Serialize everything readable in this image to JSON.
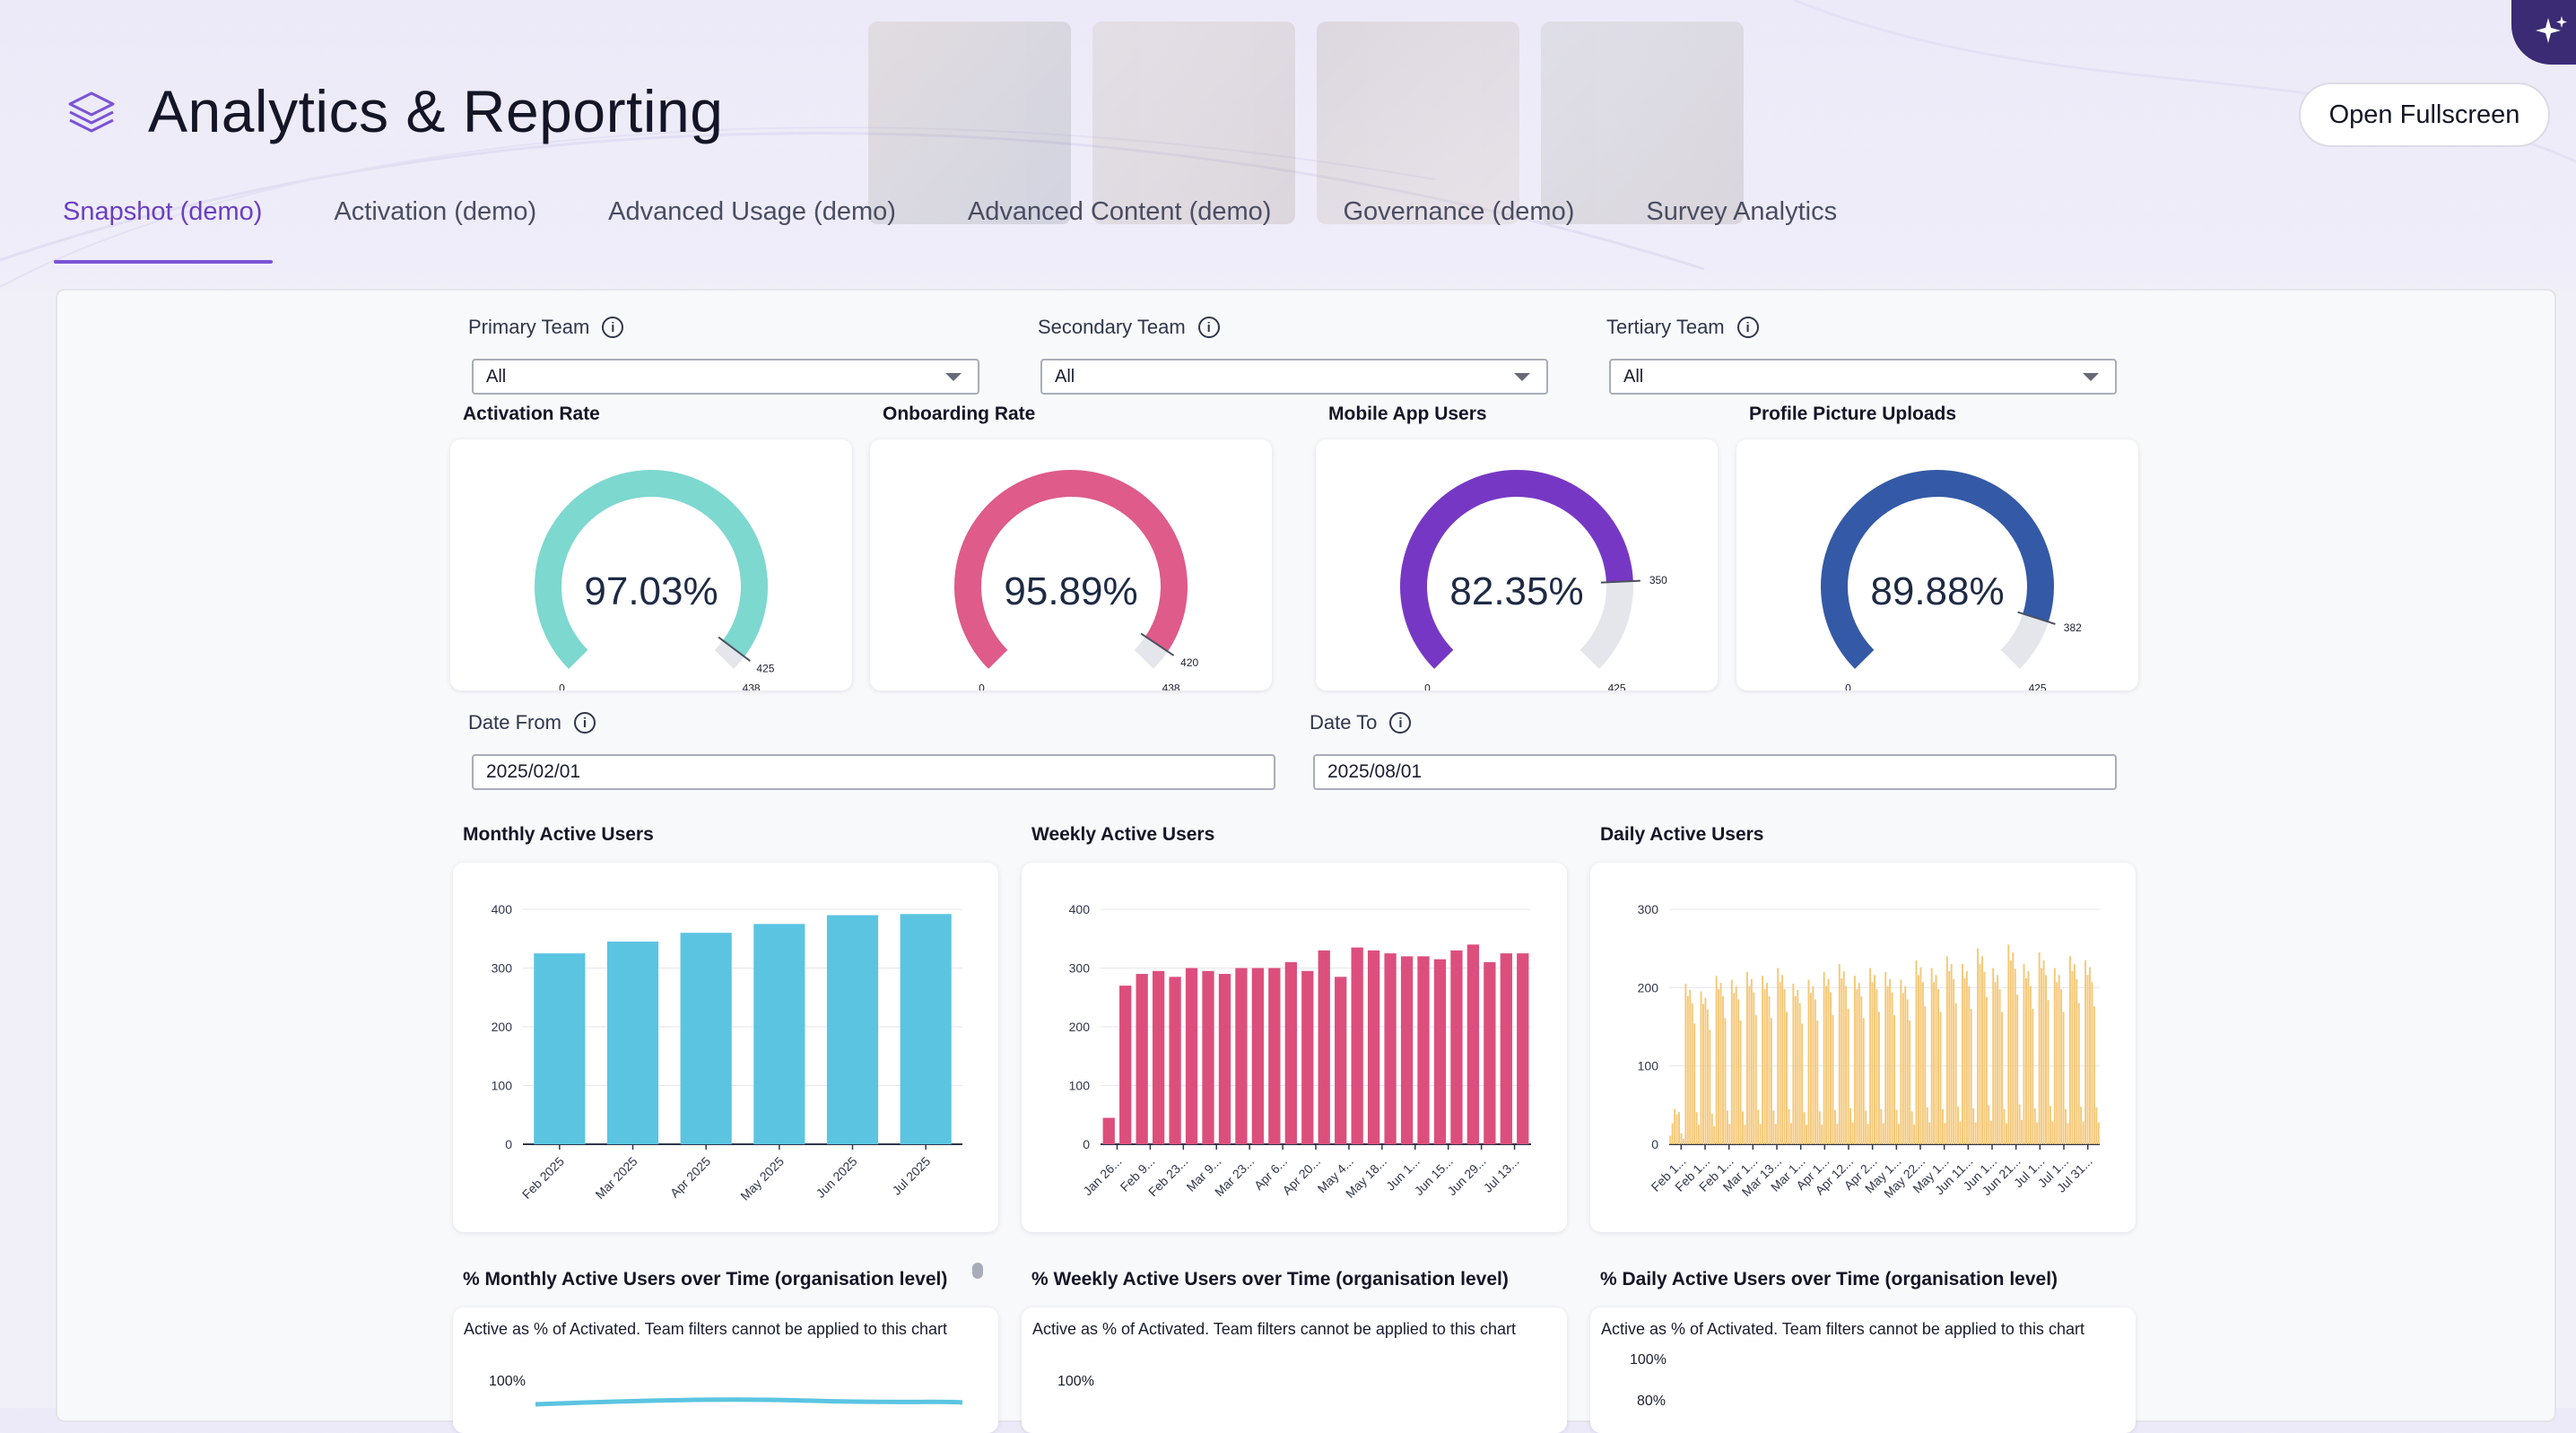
{
  "app": {
    "title": "Analytics & Reporting",
    "open_fullscreen_label": "Open Fullscreen",
    "icons": {
      "app": "layers-icon",
      "assistant": "sparkles-icon",
      "info": "info-icon",
      "dropdown": "chevron-down-icon"
    },
    "colors": {
      "accent": "#6a3fc2",
      "activation": "#7dd8cf",
      "onboarding": "#de5b8a",
      "mobile": "#7638c4",
      "profile": "#3459a6",
      "monthly_bar": "#5bc4e1",
      "weekly_bar": "#dc4f7c",
      "daily_bar": "#f5c878"
    }
  },
  "tabs": [
    {
      "label": "Snapshot (demo)",
      "active": true
    },
    {
      "label": "Activation (demo)",
      "active": false
    },
    {
      "label": "Advanced Usage (demo)",
      "active": false
    },
    {
      "label": "Advanced Content (demo)",
      "active": false
    },
    {
      "label": "Governance (demo)",
      "active": false
    },
    {
      "label": "Survey Analytics",
      "active": false
    }
  ],
  "filters": {
    "primary": {
      "label": "Primary Team",
      "value": "All"
    },
    "secondary": {
      "label": "Secondary Team",
      "value": "All"
    },
    "tertiary": {
      "label": "Tertiary Team",
      "value": "All"
    },
    "date_from": {
      "label": "Date From",
      "value": "2025/02/01"
    },
    "date_to": {
      "label": "Date To",
      "value": "2025/08/01"
    }
  },
  "gauges": [
    {
      "title": "Activation Rate",
      "value_text": "97.03%",
      "fraction": 0.9703,
      "min": "0",
      "current": "425",
      "max": "438"
    },
    {
      "title": "Onboarding Rate",
      "value_text": "95.89%",
      "fraction": 0.9589,
      "min": "0",
      "current": "420",
      "max": "438"
    },
    {
      "title": "Mobile App Users",
      "value_text": "82.35%",
      "fraction": 0.8235,
      "min": "0",
      "current": "350",
      "max": "425"
    },
    {
      "title": "Profile Picture Uploads",
      "value_text": "89.88%",
      "fraction": 0.8988,
      "min": "0",
      "current": "382",
      "max": "425"
    }
  ],
  "chart_data": [
    {
      "type": "bar",
      "title": "Monthly Active Users",
      "categories": [
        "Feb 2025",
        "Mar 2025",
        "Apr 2025",
        "May 2025",
        "Jun 2025",
        "Jul 2025"
      ],
      "values": [
        325,
        345,
        360,
        375,
        390,
        392
      ],
      "ylim": [
        0,
        400
      ],
      "yticks": [
        "0",
        "100",
        "200",
        "300",
        "400"
      ],
      "grid": true
    },
    {
      "type": "bar",
      "title": "Weekly Active Users",
      "x_tick_labels": [
        "Jan 26...",
        "Feb 9...",
        "Feb 23...",
        "Mar 9...",
        "Mar 23...",
        "Apr 6...",
        "Apr 20...",
        "May 4...",
        "May 18...",
        "Jun 1...",
        "Jun 15...",
        "Jun 29...",
        "Jul 13..."
      ],
      "values": [
        45,
        270,
        290,
        295,
        285,
        300,
        295,
        290,
        300,
        300,
        300,
        310,
        295,
        330,
        285,
        335,
        330,
        325,
        320,
        320,
        315,
        330,
        340,
        310,
        325,
        325
      ],
      "ylim": [
        0,
        400
      ],
      "yticks": [
        "0",
        "100",
        "200",
        "300",
        "400"
      ],
      "grid": true
    },
    {
      "type": "bar",
      "title": "Daily Active Users",
      "x_tick_labels": [
        "Feb 1...",
        "Feb 1...",
        "Feb 1...",
        "Mar 1...",
        "Mar 13...",
        "Mar 1...",
        "Apr 1...",
        "Apr 12...",
        "Apr 2...",
        "May 1...",
        "May 22...",
        "May 1...",
        "Jun 11...",
        "Jun 1...",
        "Jun 21...",
        "Jul 1...",
        "Jul 1...",
        "Jul 31..."
      ],
      "peaks": [
        45,
        205,
        195,
        215,
        210,
        220,
        215,
        225,
        205,
        210,
        220,
        230,
        215,
        225,
        220,
        210,
        235,
        225,
        240,
        230,
        250,
        225,
        255,
        230,
        245,
        225,
        240,
        235
      ],
      "ylim": [
        0,
        300
      ],
      "yticks": [
        "0",
        "100",
        "200",
        "300"
      ],
      "grid": true
    },
    {
      "type": "line",
      "title": "% Monthly Active Users over Time (organisation level)",
      "subtitle": "Active as % of Activated. Team filters cannot be applied to this chart",
      "yticks_visible": [
        "100%"
      ]
    },
    {
      "type": "line",
      "title": "% Weekly Active Users over Time (organisation level)",
      "subtitle": "Active as % of Activated. Team filters cannot be applied to this chart",
      "yticks_visible": [
        "100%"
      ]
    },
    {
      "type": "line",
      "title": "% Daily Active Users over Time (organisation level)",
      "subtitle": "Active as % of Activated. Team filters cannot be applied to this chart",
      "yticks_visible": [
        "100%",
        "80%"
      ]
    }
  ]
}
